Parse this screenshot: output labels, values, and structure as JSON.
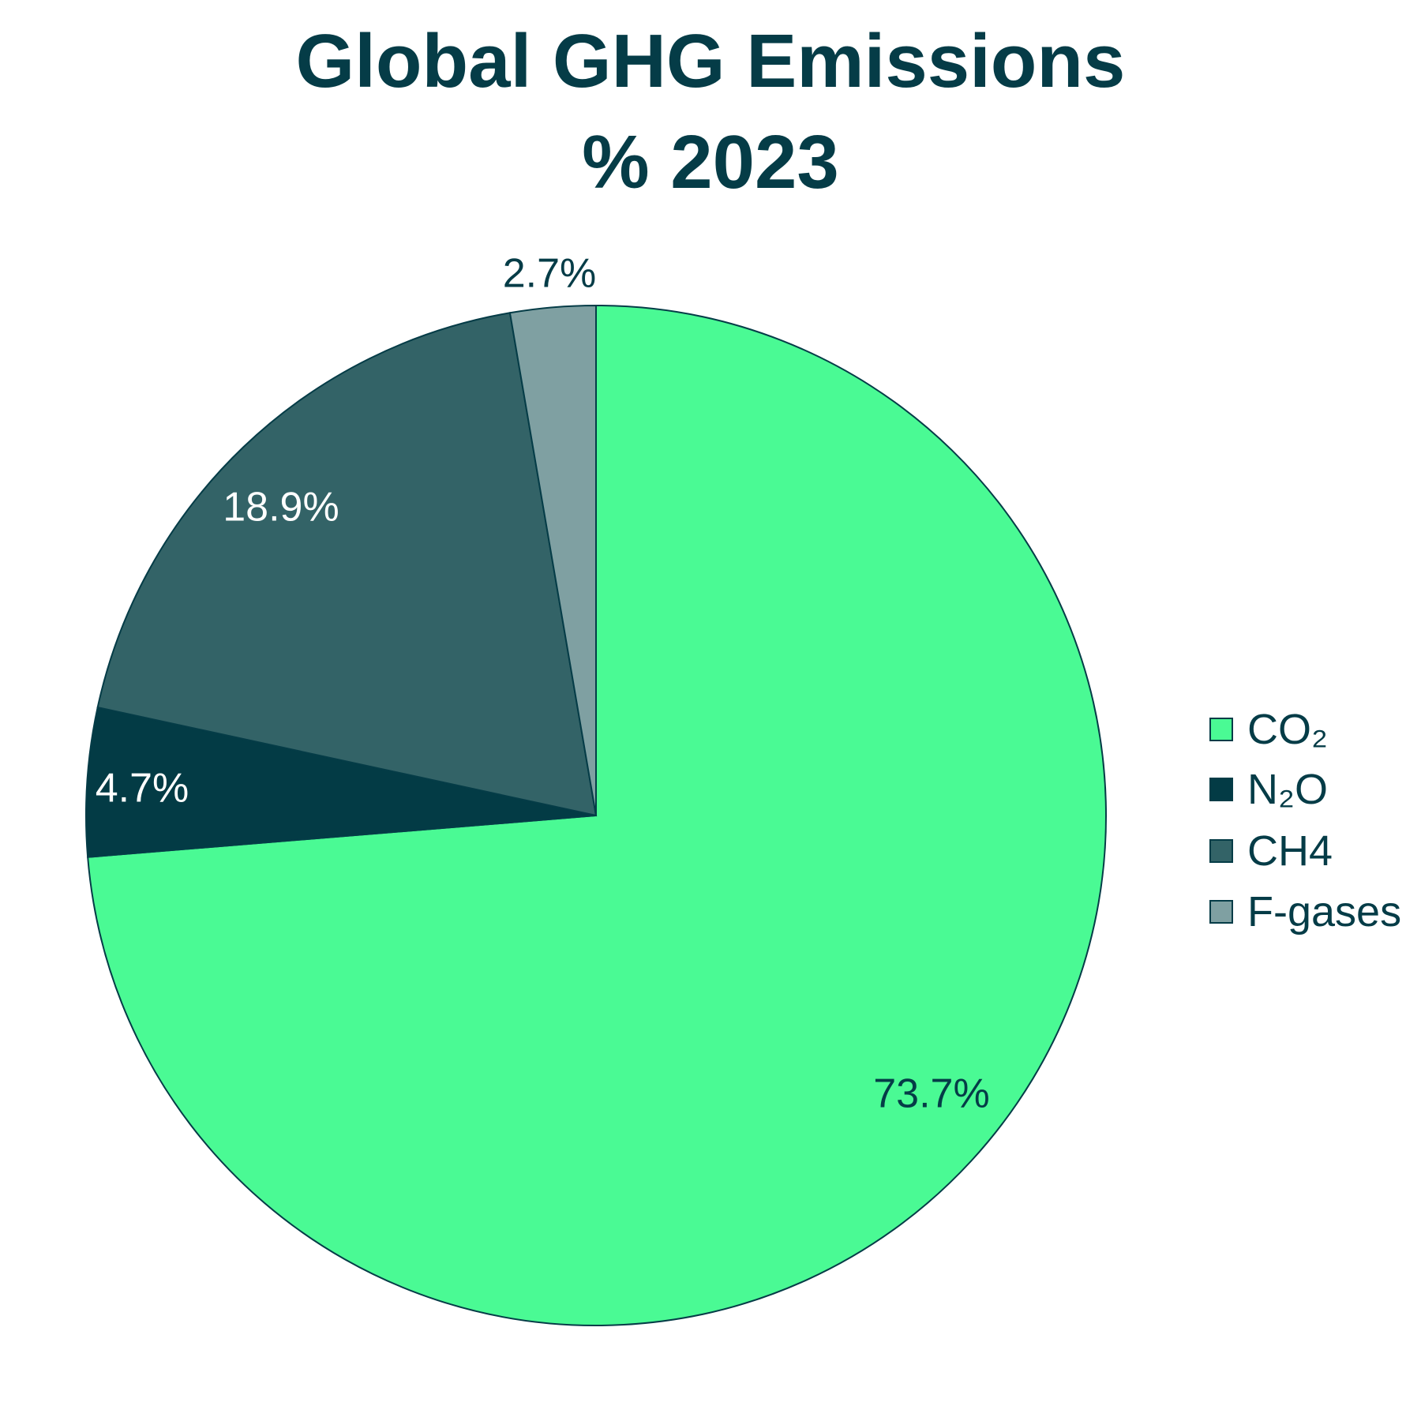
{
  "chart_data": {
    "type": "pie",
    "title_lines": [
      "Global GHG Emissions",
      "% 2023"
    ],
    "categories": [
      "CO₂",
      "N₂O",
      "CH4",
      "F-gases"
    ],
    "values": [
      73.7,
      4.7,
      18.9,
      2.7
    ],
    "data_labels": [
      "73.7%",
      "4.7%",
      "18.9%",
      "2.7%"
    ],
    "colors": [
      "#4afa94",
      "#033b45",
      "#336367",
      "#7fa0a2"
    ],
    "label_colors": [
      "#053c47",
      "#ffffff",
      "#ffffff",
      "#053c47"
    ],
    "start": "top",
    "direction": "clockwise",
    "legend_position": "right"
  }
}
